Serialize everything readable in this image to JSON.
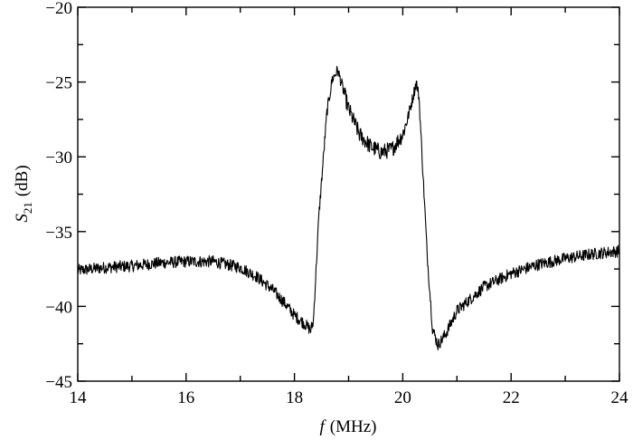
{
  "chart_data": {
    "type": "line",
    "xlabel": {
      "var": "f",
      "unit": "(MHz)"
    },
    "ylabel": {
      "var": "S",
      "sub": "21",
      "unit": "(dB)"
    },
    "xlim": [
      14,
      24
    ],
    "ylim": [
      -45,
      -20
    ],
    "x_ticks": [
      14,
      16,
      18,
      20,
      22,
      24
    ],
    "x_tick_labels": [
      "14",
      "16",
      "18",
      "20",
      "22",
      "24"
    ],
    "y_ticks": [
      -20,
      -25,
      -30,
      -35,
      -40,
      -45
    ],
    "y_tick_labels": [
      "−20",
      "−25",
      "−30",
      "−35",
      "−40",
      "−45"
    ],
    "grid": false,
    "series": [
      {
        "color": "#000000",
        "x": [
          14.0,
          14.5,
          15.0,
          15.5,
          16.0,
          16.5,
          17.0,
          17.3,
          17.6,
          17.8,
          18.0,
          18.2,
          18.3,
          18.35,
          18.45,
          18.6,
          18.7,
          18.8,
          18.9,
          19.0,
          19.2,
          19.4,
          19.6,
          19.8,
          20.0,
          20.1,
          20.2,
          20.25,
          20.3,
          20.35,
          20.45,
          20.55,
          20.65,
          20.8,
          21.0,
          21.5,
          22.0,
          22.5,
          23.0,
          23.5,
          24.0
        ],
        "values": [
          -37.6,
          -37.4,
          -37.3,
          -37.1,
          -37.0,
          -37.0,
          -37.4,
          -38.0,
          -38.9,
          -39.7,
          -40.6,
          -41.2,
          -41.6,
          -41.0,
          -34.0,
          -27.0,
          -24.8,
          -24.2,
          -25.5,
          -26.8,
          -28.5,
          -29.3,
          -29.7,
          -29.5,
          -28.5,
          -27.3,
          -25.8,
          -25.0,
          -26.0,
          -29.5,
          -36.5,
          -41.5,
          -42.6,
          -41.8,
          -40.3,
          -38.7,
          -37.8,
          -37.2,
          -36.8,
          -36.5,
          -36.3
        ]
      }
    ]
  }
}
